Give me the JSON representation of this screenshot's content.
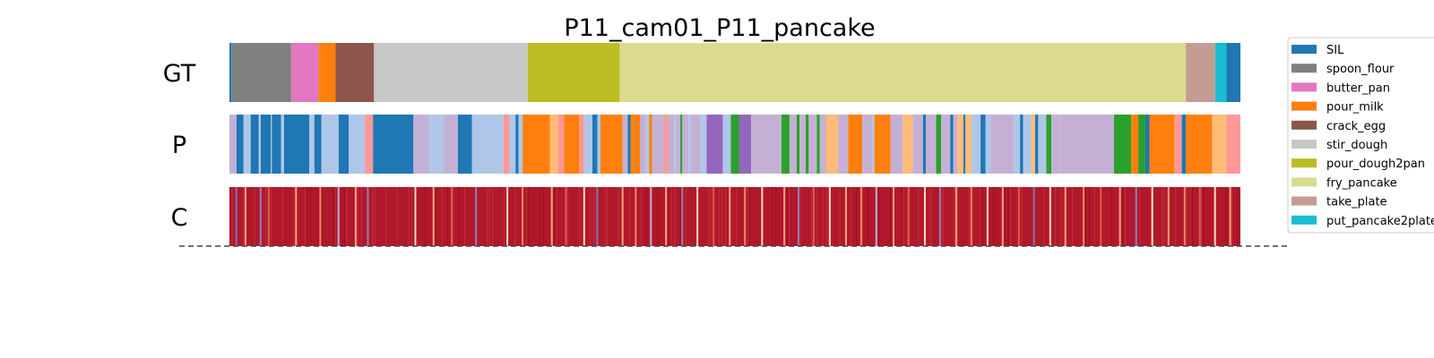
{
  "chart_data": {
    "type": "segmentation",
    "title": "P11_cam01_P11_pancake",
    "rows": [
      {
        "label": "GT",
        "segments": [
          {
            "start": 0,
            "end": 0.2,
            "class": "SIL"
          },
          {
            "start": 0.2,
            "end": 6.1,
            "class": "spoon_flour"
          },
          {
            "start": 6.1,
            "end": 8.8,
            "class": "butter_pan"
          },
          {
            "start": 8.8,
            "end": 10.5,
            "class": "pour_milk"
          },
          {
            "start": 10.5,
            "end": 14.3,
            "class": "crack_egg"
          },
          {
            "start": 14.3,
            "end": 29.5,
            "class": "stir_dough"
          },
          {
            "start": 29.5,
            "end": 38.6,
            "class": "pour_dough2pan"
          },
          {
            "start": 38.6,
            "end": 94.6,
            "class": "fry_pancake"
          },
          {
            "start": 94.6,
            "end": 97.5,
            "class": "take_plate"
          },
          {
            "start": 97.5,
            "end": 98.6,
            "class": "put_pancake2plate"
          },
          {
            "start": 98.6,
            "end": 100,
            "class": "SIL"
          }
        ]
      },
      {
        "label": "P",
        "segments": [
          {
            "start": 0,
            "end": 0.7,
            "class": "c_lilac"
          },
          {
            "start": 0.7,
            "end": 1.4,
            "class": "SIL"
          },
          {
            "start": 1.4,
            "end": 2.1,
            "class": "c_lightblue"
          },
          {
            "start": 2.1,
            "end": 2.9,
            "class": "SIL"
          },
          {
            "start": 2.9,
            "end": 3.1,
            "class": "c_lightblue"
          },
          {
            "start": 3.1,
            "end": 4.1,
            "class": "SIL"
          },
          {
            "start": 4.1,
            "end": 4.2,
            "class": "c_lightblue"
          },
          {
            "start": 4.2,
            "end": 5.1,
            "class": "SIL"
          },
          {
            "start": 5.1,
            "end": 5.4,
            "class": "c_lightblue"
          },
          {
            "start": 5.4,
            "end": 7.9,
            "class": "SIL"
          },
          {
            "start": 7.9,
            "end": 8.4,
            "class": "c_lightblue"
          },
          {
            "start": 8.4,
            "end": 9.1,
            "class": "SIL"
          },
          {
            "start": 9.1,
            "end": 10.8,
            "class": "c_lightblue"
          },
          {
            "start": 10.8,
            "end": 11.8,
            "class": "SIL"
          },
          {
            "start": 11.8,
            "end": 13.4,
            "class": "c_lightblue"
          },
          {
            "start": 13.4,
            "end": 14.2,
            "class": "c_salmon"
          },
          {
            "start": 14.2,
            "end": 18.2,
            "class": "SIL"
          },
          {
            "start": 18.2,
            "end": 19.8,
            "class": "c_lilac"
          },
          {
            "start": 19.8,
            "end": 21.2,
            "class": "c_lightblue"
          },
          {
            "start": 21.2,
            "end": 22.6,
            "class": "c_lilac"
          },
          {
            "start": 22.6,
            "end": 24.0,
            "class": "SIL"
          },
          {
            "start": 24.0,
            "end": 27.1,
            "class": "c_lightblue"
          },
          {
            "start": 27.1,
            "end": 27.7,
            "class": "c_salmon"
          },
          {
            "start": 27.7,
            "end": 28.3,
            "class": "c_lightblue"
          },
          {
            "start": 28.3,
            "end": 28.6,
            "class": "SIL"
          },
          {
            "start": 28.6,
            "end": 29.0,
            "class": "c_lightblue"
          },
          {
            "start": 29.0,
            "end": 31.7,
            "class": "pour_milk"
          },
          {
            "start": 31.7,
            "end": 32.5,
            "class": "c_peach"
          },
          {
            "start": 32.5,
            "end": 33.1,
            "class": "c_salmon"
          },
          {
            "start": 33.1,
            "end": 34.6,
            "class": "pour_milk"
          },
          {
            "start": 34.6,
            "end": 35.1,
            "class": "c_salmon"
          },
          {
            "start": 35.1,
            "end": 35.9,
            "class": "c_lightblue"
          },
          {
            "start": 35.9,
            "end": 36.4,
            "class": "SIL"
          },
          {
            "start": 36.4,
            "end": 36.7,
            "class": "c_lightblue"
          },
          {
            "start": 36.7,
            "end": 38.9,
            "class": "pour_milk"
          },
          {
            "start": 38.9,
            "end": 39.4,
            "class": "c_lilac"
          },
          {
            "start": 39.4,
            "end": 39.7,
            "class": "SIL"
          },
          {
            "start": 39.7,
            "end": 40.6,
            "class": "pour_milk"
          },
          {
            "start": 40.6,
            "end": 41.2,
            "class": "c_lilac"
          },
          {
            "start": 41.2,
            "end": 41.5,
            "class": "c_lightblue"
          },
          {
            "start": 41.5,
            "end": 41.8,
            "class": "pour_milk"
          },
          {
            "start": 41.8,
            "end": 43.0,
            "class": "c_lilac"
          },
          {
            "start": 43.0,
            "end": 43.4,
            "class": "c_salmon"
          },
          {
            "start": 43.4,
            "end": 44.0,
            "class": "c_lilac"
          },
          {
            "start": 44.0,
            "end": 44.2,
            "class": "c_lightblue"
          },
          {
            "start": 44.2,
            "end": 44.6,
            "class": "c_lilac"
          },
          {
            "start": 44.6,
            "end": 44.8,
            "class": "c_green"
          },
          {
            "start": 44.8,
            "end": 45.4,
            "class": "c_lilac"
          },
          {
            "start": 45.4,
            "end": 45.6,
            "class": "c_lightblue"
          },
          {
            "start": 45.6,
            "end": 46.6,
            "class": "c_lilac"
          },
          {
            "start": 46.6,
            "end": 47.2,
            "class": "c_lightblue"
          },
          {
            "start": 47.2,
            "end": 48.8,
            "class": "c_purple"
          },
          {
            "start": 48.8,
            "end": 49.6,
            "class": "c_lightblue"
          },
          {
            "start": 49.6,
            "end": 50.4,
            "class": "c_green"
          },
          {
            "start": 50.4,
            "end": 51.6,
            "class": "c_purple"
          },
          {
            "start": 51.6,
            "end": 54.6,
            "class": "c_lilac"
          },
          {
            "start": 54.6,
            "end": 55.4,
            "class": "c_green"
          },
          {
            "start": 55.4,
            "end": 56.1,
            "class": "c_lilac"
          },
          {
            "start": 56.1,
            "end": 56.4,
            "class": "c_green"
          },
          {
            "start": 56.4,
            "end": 57.0,
            "class": "c_lilac"
          },
          {
            "start": 57.0,
            "end": 57.3,
            "class": "c_green"
          },
          {
            "start": 57.3,
            "end": 58.1,
            "class": "c_lilac"
          },
          {
            "start": 58.1,
            "end": 58.4,
            "class": "c_green"
          },
          {
            "start": 58.4,
            "end": 59.0,
            "class": "c_lilac"
          },
          {
            "start": 59.0,
            "end": 60.2,
            "class": "c_peach"
          },
          {
            "start": 60.2,
            "end": 61.2,
            "class": "c_lilac"
          },
          {
            "start": 61.2,
            "end": 62.6,
            "class": "pour_milk"
          },
          {
            "start": 62.6,
            "end": 63.6,
            "class": "c_lilac"
          },
          {
            "start": 63.6,
            "end": 63.8,
            "class": "c_lightblue"
          },
          {
            "start": 63.8,
            "end": 65.4,
            "class": "pour_milk"
          },
          {
            "start": 65.4,
            "end": 66.6,
            "class": "c_lilac"
          },
          {
            "start": 66.6,
            "end": 67.6,
            "class": "c_peach"
          },
          {
            "start": 67.6,
            "end": 68.6,
            "class": "c_lilac"
          },
          {
            "start": 68.6,
            "end": 68.9,
            "class": "SIL"
          },
          {
            "start": 68.9,
            "end": 69.9,
            "class": "c_lilac"
          },
          {
            "start": 69.9,
            "end": 70.4,
            "class": "c_green"
          },
          {
            "start": 70.4,
            "end": 71.3,
            "class": "c_lilac"
          },
          {
            "start": 71.3,
            "end": 71.6,
            "class": "SIL"
          },
          {
            "start": 71.6,
            "end": 72.0,
            "class": "c_lilac"
          },
          {
            "start": 72.0,
            "end": 72.6,
            "class": "c_peach"
          },
          {
            "start": 72.6,
            "end": 72.8,
            "class": "SIL"
          },
          {
            "start": 72.8,
            "end": 73.4,
            "class": "c_peach"
          },
          {
            "start": 73.4,
            "end": 74.3,
            "class": "c_lightblue"
          },
          {
            "start": 74.3,
            "end": 74.8,
            "class": "SIL"
          },
          {
            "start": 74.8,
            "end": 75.3,
            "class": "c_lightblue"
          },
          {
            "start": 75.3,
            "end": 77.6,
            "class": "c_lilac"
          },
          {
            "start": 77.6,
            "end": 78.2,
            "class": "c_lightblue"
          },
          {
            "start": 78.2,
            "end": 78.5,
            "class": "SIL"
          },
          {
            "start": 78.5,
            "end": 79.3,
            "class": "c_lightblue"
          },
          {
            "start": 79.3,
            "end": 79.7,
            "class": "c_peach"
          },
          {
            "start": 79.7,
            "end": 80.0,
            "class": "SIL"
          },
          {
            "start": 80.0,
            "end": 80.8,
            "class": "c_lightblue"
          },
          {
            "start": 80.8,
            "end": 81.3,
            "class": "c_green"
          },
          {
            "start": 81.3,
            "end": 82.2,
            "class": "c_lilac"
          },
          {
            "start": 82.2,
            "end": 87.5,
            "class": "c_lilac"
          },
          {
            "start": 87.5,
            "end": 89.2,
            "class": "c_green"
          },
          {
            "start": 89.2,
            "end": 89.9,
            "class": "pour_milk"
          },
          {
            "start": 89.9,
            "end": 90.6,
            "class": "c_green"
          },
          {
            "start": 90.6,
            "end": 91.0,
            "class": "SIL"
          },
          {
            "start": 91.0,
            "end": 93.5,
            "class": "pour_milk"
          },
          {
            "start": 93.5,
            "end": 94.2,
            "class": "c_salmon"
          },
          {
            "start": 94.2,
            "end": 94.6,
            "class": "SIL"
          },
          {
            "start": 94.6,
            "end": 97.2,
            "class": "pour_milk"
          },
          {
            "start": 97.2,
            "end": 98.6,
            "class": "c_peach"
          },
          {
            "start": 98.6,
            "end": 100,
            "class": "c_salmon"
          }
        ]
      },
      {
        "label": "C",
        "colormap": "confidence",
        "base_color": "#b2182b",
        "marks": [
          {
            "at": 0.6,
            "color": "#7b6fb3"
          },
          {
            "at": 1.5,
            "color": "#f4a582"
          },
          {
            "at": 3.0,
            "color": "#8f7fbf"
          },
          {
            "at": 3.8,
            "color": "#d6604d"
          },
          {
            "at": 6.5,
            "color": "#f4a582"
          },
          {
            "at": 8.9,
            "color": "#ef8a62"
          },
          {
            "at": 10.7,
            "color": "#b8b4d8"
          },
          {
            "at": 12.4,
            "color": "#f4a582"
          },
          {
            "at": 13.6,
            "color": "#8f7fbf"
          },
          {
            "at": 18.3,
            "color": "#fddbc7"
          },
          {
            "at": 20.1,
            "color": "#f4a582"
          },
          {
            "at": 21.9,
            "color": "#d6604d"
          },
          {
            "at": 24.3,
            "color": "#8f7fbf"
          },
          {
            "at": 27.4,
            "color": "#fddbc7"
          },
          {
            "at": 28.9,
            "color": "#ef8a62"
          },
          {
            "at": 31.8,
            "color": "#f4a582"
          },
          {
            "at": 33.2,
            "color": "#d6604d"
          },
          {
            "at": 35.0,
            "color": "#fddbc7"
          },
          {
            "at": 36.3,
            "color": "#7b6fb3"
          },
          {
            "at": 38.8,
            "color": "#f4a582"
          },
          {
            "at": 40.1,
            "color": "#ef8a62"
          },
          {
            "at": 41.6,
            "color": "#b8b4d8"
          },
          {
            "at": 43.1,
            "color": "#f4a582"
          },
          {
            "at": 44.7,
            "color": "#8f7fbf"
          },
          {
            "at": 46.2,
            "color": "#fddbc7"
          },
          {
            "at": 47.8,
            "color": "#d6604d"
          },
          {
            "at": 49.4,
            "color": "#f4a582"
          },
          {
            "at": 50.9,
            "color": "#ef8a62"
          },
          {
            "at": 52.6,
            "color": "#fddbc7"
          },
          {
            "at": 54.8,
            "color": "#f4a582"
          },
          {
            "at": 56.2,
            "color": "#8f7fbf"
          },
          {
            "at": 57.7,
            "color": "#d6604d"
          },
          {
            "at": 59.3,
            "color": "#fddbc7"
          },
          {
            "at": 60.9,
            "color": "#f4a582"
          },
          {
            "at": 62.4,
            "color": "#ef8a62"
          },
          {
            "at": 63.9,
            "color": "#b8b4d8"
          },
          {
            "at": 65.6,
            "color": "#f4a582"
          },
          {
            "at": 67.1,
            "color": "#d6604d"
          },
          {
            "at": 68.7,
            "color": "#fddbc7"
          },
          {
            "at": 70.2,
            "color": "#8f7fbf"
          },
          {
            "at": 71.8,
            "color": "#f4a582"
          },
          {
            "at": 73.3,
            "color": "#ef8a62"
          },
          {
            "at": 74.9,
            "color": "#fddbc7"
          },
          {
            "at": 76.4,
            "color": "#f4a582"
          },
          {
            "at": 78.0,
            "color": "#d6604d"
          },
          {
            "at": 79.5,
            "color": "#7b6fb3"
          },
          {
            "at": 81.1,
            "color": "#fddbc7"
          },
          {
            "at": 82.6,
            "color": "#f4a582"
          },
          {
            "at": 84.4,
            "color": "#ef8a62"
          },
          {
            "at": 86.1,
            "color": "#d6604d"
          },
          {
            "at": 88.0,
            "color": "#f4a582"
          },
          {
            "at": 89.6,
            "color": "#8f7fbf"
          },
          {
            "at": 91.2,
            "color": "#fddbc7"
          },
          {
            "at": 92.8,
            "color": "#f4a582"
          },
          {
            "at": 94.4,
            "color": "#ef8a62"
          },
          {
            "at": 95.9,
            "color": "#d6604d"
          },
          {
            "at": 97.4,
            "color": "#fddbc7"
          },
          {
            "at": 98.9,
            "color": "#f4a582"
          }
        ]
      }
    ],
    "legend": {
      "placement": "right",
      "entries": [
        {
          "label": "SIL",
          "color": "#1f77b4"
        },
        {
          "label": "spoon_flour",
          "color": "#7f7f7f"
        },
        {
          "label": "butter_pan",
          "color": "#e377c2"
        },
        {
          "label": "pour_milk",
          "color": "#ff7f0e"
        },
        {
          "label": "crack_egg",
          "color": "#8c564b"
        },
        {
          "label": "stir_dough",
          "color": "#c7c7c7"
        },
        {
          "label": "pour_dough2pan",
          "color": "#bcbd22"
        },
        {
          "label": "fry_pancake",
          "color": "#dbdb8d"
        },
        {
          "label": "take_plate",
          "color": "#c49c94"
        },
        {
          "label": "put_pancake2plate",
          "color": "#17becf"
        }
      ]
    },
    "extra_colors": {
      "c_lightblue": "#aec7e8",
      "c_lilac": "#c5b0d5",
      "c_salmon": "#ff9896",
      "c_peach": "#ffbb78",
      "c_green": "#2ca02c",
      "c_purple": "#9467bd"
    },
    "baseline": "dashed"
  }
}
